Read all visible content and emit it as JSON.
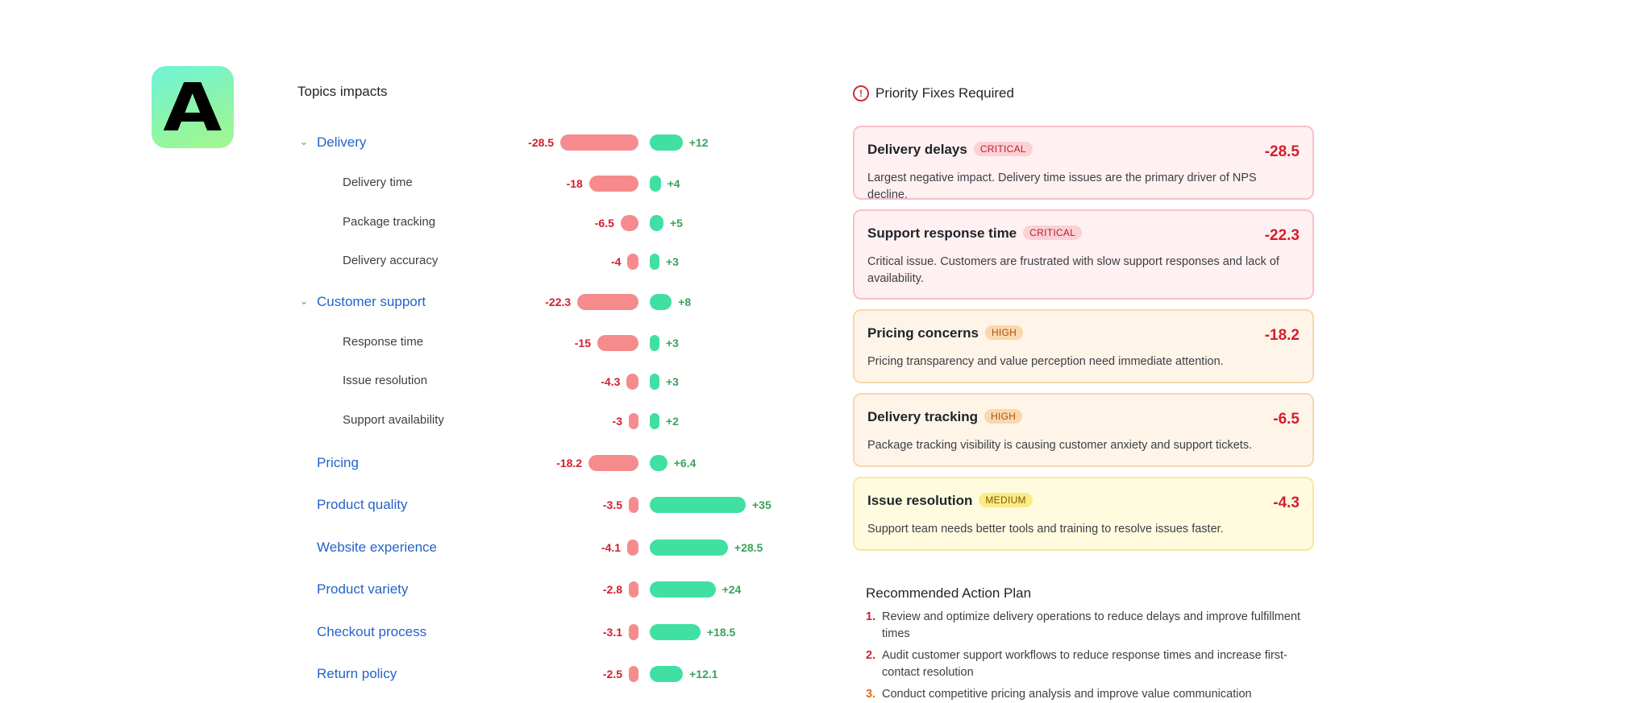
{
  "logo": {
    "letter": "A"
  },
  "topics": {
    "title": "Topics impacts",
    "rows": [
      {
        "level": "top",
        "expandable": true,
        "label": "Delivery",
        "neg": -28.5,
        "neg_label": "-28.5",
        "pos": 12,
        "pos_label": "+12"
      },
      {
        "level": "sub",
        "expandable": false,
        "label": "Delivery time",
        "neg": -18,
        "neg_label": "-18",
        "pos": 4,
        "pos_label": "+4"
      },
      {
        "level": "sub",
        "expandable": false,
        "label": "Package tracking",
        "neg": -6.5,
        "neg_label": "-6.5",
        "pos": 5,
        "pos_label": "+5"
      },
      {
        "level": "sub",
        "expandable": false,
        "label": "Delivery accuracy",
        "neg": -4,
        "neg_label": "-4",
        "pos": 3,
        "pos_label": "+3"
      },
      {
        "level": "top",
        "expandable": true,
        "label": "Customer support",
        "neg": -22.3,
        "neg_label": "-22.3",
        "pos": 8,
        "pos_label": "+8"
      },
      {
        "level": "sub",
        "expandable": false,
        "label": "Response time",
        "neg": -15,
        "neg_label": "-15",
        "pos": 3,
        "pos_label": "+3"
      },
      {
        "level": "sub",
        "expandable": false,
        "label": "Issue resolution",
        "neg": -4.3,
        "neg_label": "-4.3",
        "pos": 3,
        "pos_label": "+3"
      },
      {
        "level": "sub",
        "expandable": false,
        "label": "Support availability",
        "neg": -3,
        "neg_label": "-3",
        "pos": 2,
        "pos_label": "+2"
      },
      {
        "level": "top",
        "expandable": false,
        "label": "Pricing",
        "neg": -18.2,
        "neg_label": "-18.2",
        "pos": 6.4,
        "pos_label": "+6.4"
      },
      {
        "level": "top",
        "expandable": false,
        "label": "Product quality",
        "neg": -3.5,
        "neg_label": "-3.5",
        "pos": 35,
        "pos_label": "+35"
      },
      {
        "level": "top",
        "expandable": false,
        "label": "Website experience",
        "neg": -4.1,
        "neg_label": "-4.1",
        "pos": 28.5,
        "pos_label": "+28.5"
      },
      {
        "level": "top",
        "expandable": false,
        "label": "Product variety",
        "neg": -2.8,
        "neg_label": "-2.8",
        "pos": 24,
        "pos_label": "+24"
      },
      {
        "level": "top",
        "expandable": false,
        "label": "Checkout process",
        "neg": -3.1,
        "neg_label": "-3.1",
        "pos": 18.5,
        "pos_label": "+18.5"
      },
      {
        "level": "top",
        "expandable": false,
        "label": "Return policy",
        "neg": -2.5,
        "neg_label": "-2.5",
        "pos": 12.1,
        "pos_label": "+12.1"
      }
    ]
  },
  "priority": {
    "title": "Priority Fixes Required",
    "icon": "alert-circle-icon",
    "cards": [
      {
        "severity": "critical",
        "title": "Delivery delays",
        "badge": "CRITICAL",
        "score": "-28.5",
        "desc": "Largest negative impact. Delivery time issues are the primary driver of NPS decline."
      },
      {
        "severity": "critical",
        "title": "Support response time",
        "badge": "CRITICAL",
        "score": "-22.3",
        "desc": "Critical issue. Customers are frustrated with slow support responses and lack of availability."
      },
      {
        "severity": "high",
        "title": "Pricing concerns",
        "badge": "HIGH",
        "score": "-18.2",
        "desc": "Pricing transparency and value perception need immediate attention."
      },
      {
        "severity": "high",
        "title": "Delivery tracking",
        "badge": "HIGH",
        "score": "-6.5",
        "desc": "Package tracking visibility is causing customer anxiety and support tickets."
      },
      {
        "severity": "medium",
        "title": "Issue resolution",
        "badge": "MEDIUM",
        "score": "-4.3",
        "desc": "Support team needs better tools and training to resolve issues faster."
      }
    ]
  },
  "plan": {
    "title": "Recommended Action Plan",
    "items": [
      {
        "num": "1.",
        "text": "Review and optimize delivery operations to reduce delays and improve fulfillment times"
      },
      {
        "num": "2.",
        "text": "Audit customer support workflows to reduce response times and increase first-contact resolution"
      },
      {
        "num": "3.",
        "text": "Conduct competitive pricing analysis and improve value communication"
      }
    ]
  }
}
